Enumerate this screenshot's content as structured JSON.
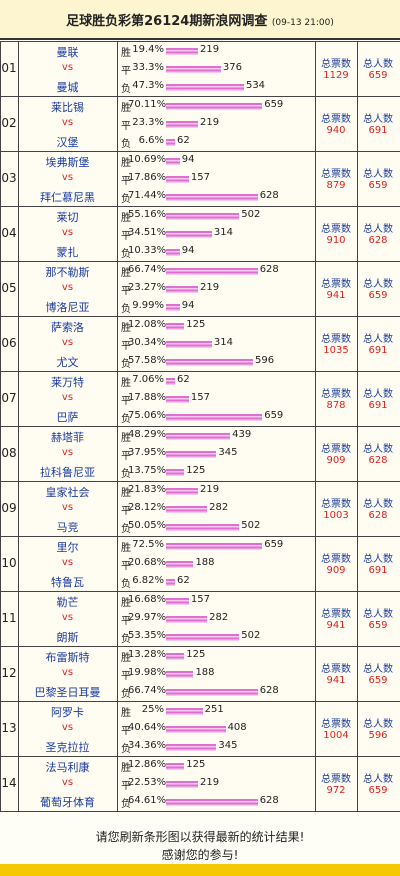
{
  "header": {
    "title": "足球胜负彩第26124期新浪网调查",
    "time": "(09-13 21:00)"
  },
  "labels": {
    "win": "胜",
    "draw": "平",
    "lose": "负",
    "vs": "vs",
    "votes": "总票数",
    "people": "总人数"
  },
  "matches": [
    {
      "no": "01",
      "home": "曼联",
      "away": "曼城",
      "win": {
        "pct": "19.4%",
        "count": 219
      },
      "draw": {
        "pct": "33.3%",
        "count": 376
      },
      "lose": {
        "pct": "47.3%",
        "count": 534
      },
      "votes": 1129,
      "people": 659
    },
    {
      "no": "02",
      "home": "莱比锡",
      "away": "汉堡",
      "win": {
        "pct": "70.11%",
        "count": 659
      },
      "draw": {
        "pct": "23.3%",
        "count": 219
      },
      "lose": {
        "pct": "6.6%",
        "count": 62
      },
      "votes": 940,
      "people": 691
    },
    {
      "no": "03",
      "home": "埃弗斯堡",
      "away": "拜仁慕尼黑",
      "win": {
        "pct": "10.69%",
        "count": 94
      },
      "draw": {
        "pct": "17.86%",
        "count": 157
      },
      "lose": {
        "pct": "71.44%",
        "count": 628
      },
      "votes": 879,
      "people": 659
    },
    {
      "no": "04",
      "home": "莱切",
      "away": "蒙扎",
      "win": {
        "pct": "55.16%",
        "count": 502
      },
      "draw": {
        "pct": "34.51%",
        "count": 314
      },
      "lose": {
        "pct": "10.33%",
        "count": 94
      },
      "votes": 910,
      "people": 628
    },
    {
      "no": "05",
      "home": "那不勒斯",
      "away": "博洛尼亚",
      "win": {
        "pct": "66.74%",
        "count": 628
      },
      "draw": {
        "pct": "23.27%",
        "count": 219
      },
      "lose": {
        "pct": "9.99%",
        "count": 94
      },
      "votes": 941,
      "people": 659
    },
    {
      "no": "06",
      "home": "萨索洛",
      "away": "尤文",
      "win": {
        "pct": "12.08%",
        "count": 125
      },
      "draw": {
        "pct": "30.34%",
        "count": 314
      },
      "lose": {
        "pct": "57.58%",
        "count": 596
      },
      "votes": 1035,
      "people": 691
    },
    {
      "no": "07",
      "home": "莱万特",
      "away": "巴萨",
      "win": {
        "pct": "7.06%",
        "count": 62
      },
      "draw": {
        "pct": "17.88%",
        "count": 157
      },
      "lose": {
        "pct": "75.06%",
        "count": 659
      },
      "votes": 878,
      "people": 691
    },
    {
      "no": "08",
      "home": "赫塔菲",
      "away": "拉科鲁尼亚",
      "win": {
        "pct": "48.29%",
        "count": 439
      },
      "draw": {
        "pct": "37.95%",
        "count": 345
      },
      "lose": {
        "pct": "13.75%",
        "count": 125
      },
      "votes": 909,
      "people": 628
    },
    {
      "no": "09",
      "home": "皇家社会",
      "away": "马竞",
      "win": {
        "pct": "21.83%",
        "count": 219
      },
      "draw": {
        "pct": "28.12%",
        "count": 282
      },
      "lose": {
        "pct": "50.05%",
        "count": 502
      },
      "votes": 1003,
      "people": 628
    },
    {
      "no": "10",
      "home": "里尔",
      "away": "特鲁瓦",
      "win": {
        "pct": "72.5%",
        "count": 659
      },
      "draw": {
        "pct": "20.68%",
        "count": 188
      },
      "lose": {
        "pct": "6.82%",
        "count": 62
      },
      "votes": 909,
      "people": 691
    },
    {
      "no": "11",
      "home": "勒芒",
      "away": "朗斯",
      "win": {
        "pct": "16.68%",
        "count": 157
      },
      "draw": {
        "pct": "29.97%",
        "count": 282
      },
      "lose": {
        "pct": "53.35%",
        "count": 502
      },
      "votes": 941,
      "people": 659
    },
    {
      "no": "12",
      "home": "布雷斯特",
      "away": "巴黎圣日耳曼",
      "win": {
        "pct": "13.28%",
        "count": 125
      },
      "draw": {
        "pct": "19.98%",
        "count": 188
      },
      "lose": {
        "pct": "66.74%",
        "count": 628
      },
      "votes": 941,
      "people": 659
    },
    {
      "no": "13",
      "home": "阿罗卡",
      "away": "圣克拉拉",
      "win": {
        "pct": "25%",
        "count": 251
      },
      "draw": {
        "pct": "40.64%",
        "count": 408
      },
      "lose": {
        "pct": "34.36%",
        "count": 345
      },
      "votes": 1004,
      "people": 596
    },
    {
      "no": "14",
      "home": "法马利康",
      "away": "葡萄牙体育",
      "win": {
        "pct": "12.86%",
        "count": 125
      },
      "draw": {
        "pct": "22.53%",
        "count": 219
      },
      "lose": {
        "pct": "64.61%",
        "count": 628
      },
      "votes": 972,
      "people": 659
    }
  ],
  "footer": {
    "line1": "请您刷新条形图以获得最新的统计结果!",
    "line2": "感谢您的参与!"
  }
}
